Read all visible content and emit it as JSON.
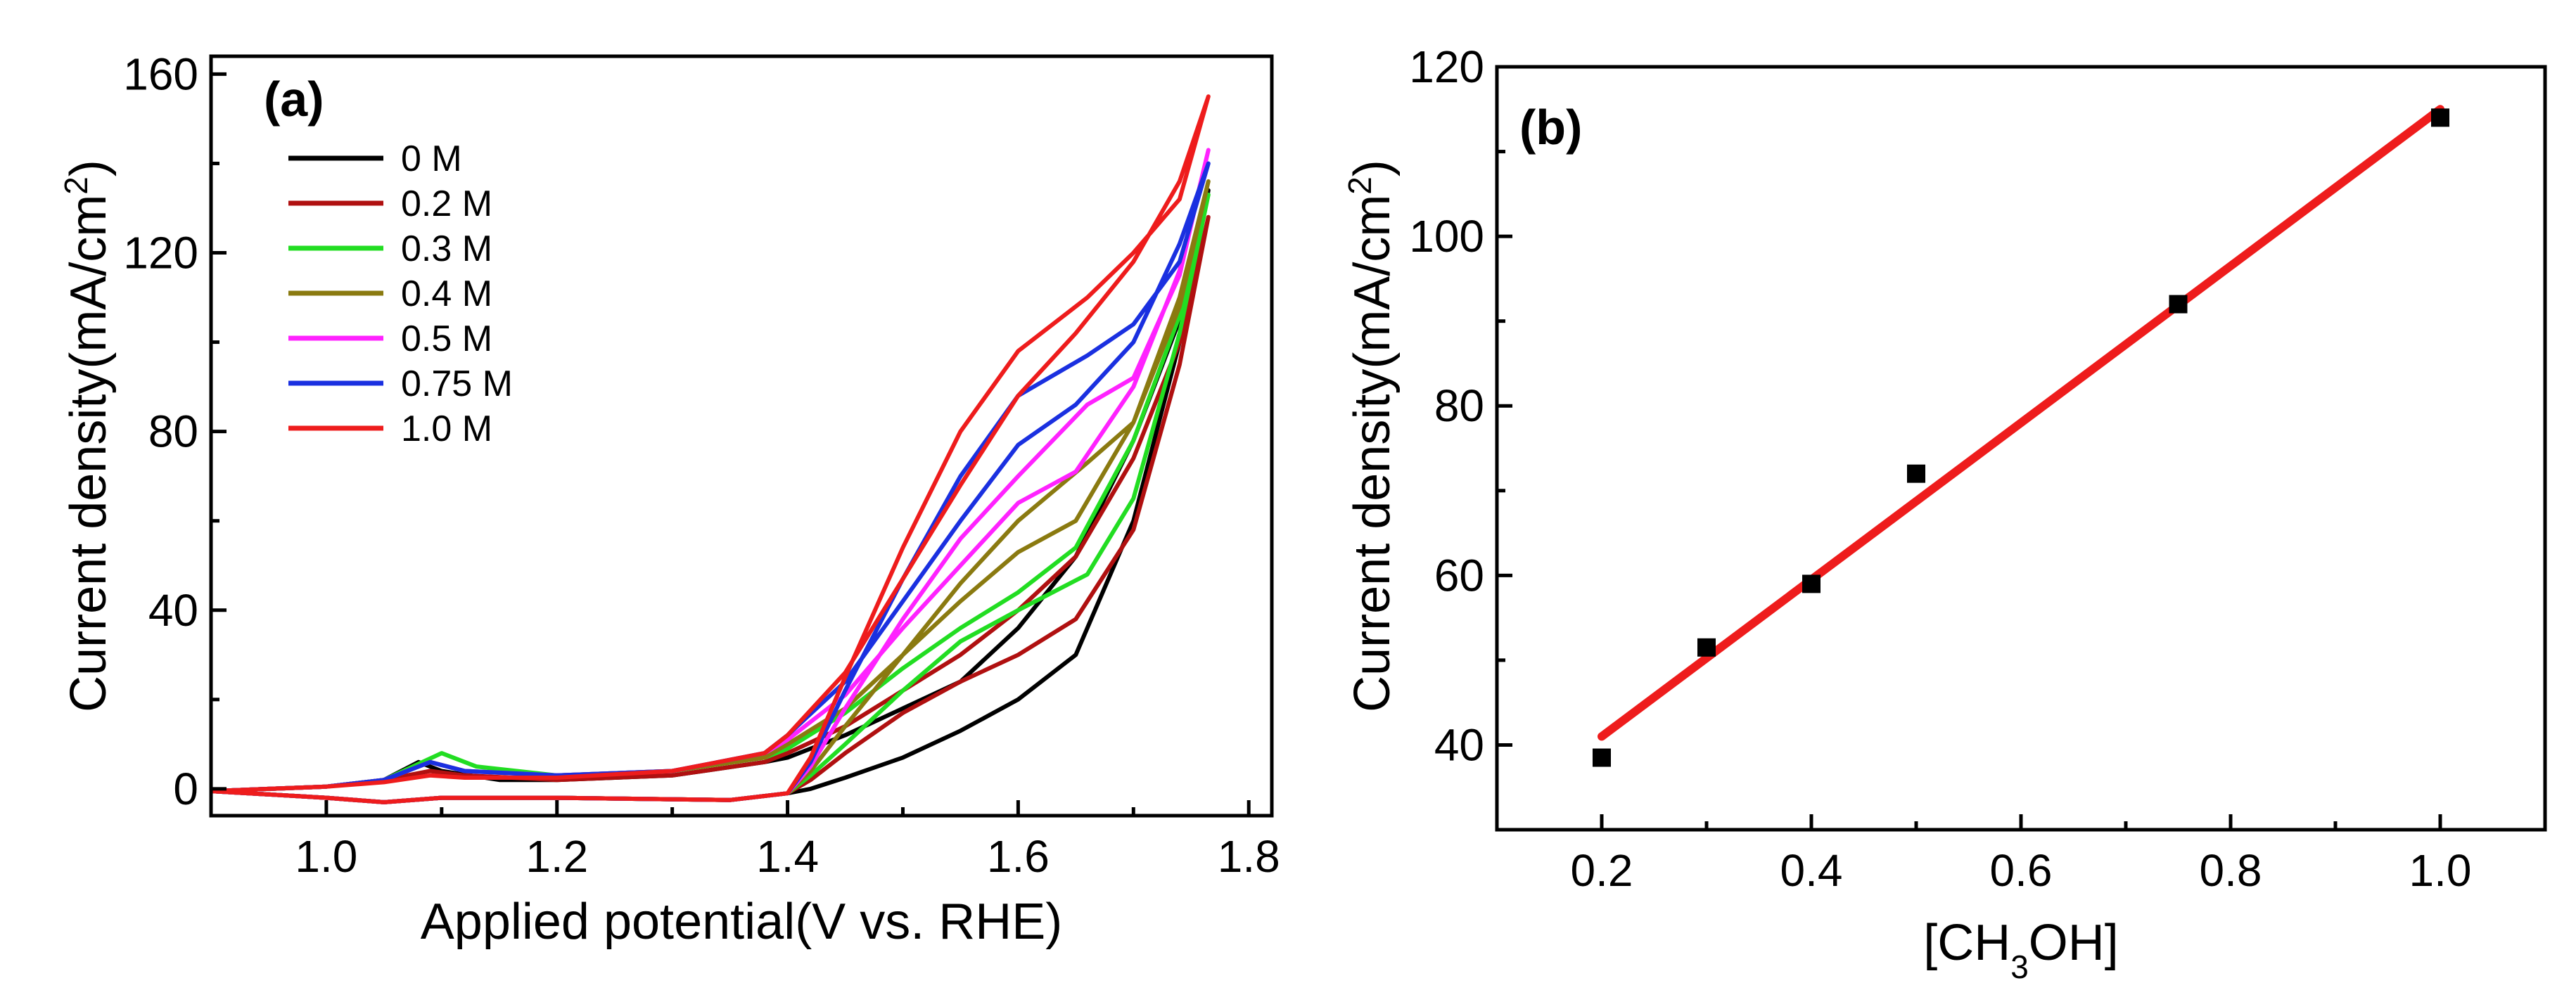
{
  "figure": {
    "panel_a_label": "(a)",
    "panel_b_label": "(b)"
  },
  "chart_data": [
    {
      "type": "line",
      "panel": "(a)",
      "title": "",
      "xlabel": "Applied potential(V vs. RHE)",
      "ylabel_main": "Current density(mA/cm",
      "ylabel_sup": "2",
      "ylabel_end": ")",
      "xlim": [
        0.9,
        1.82
      ],
      "ylim": [
        -6,
        164
      ],
      "xticks": [
        1.0,
        1.2,
        1.4,
        1.6,
        1.8
      ],
      "xtick_labels": [
        "1.0",
        "1.2",
        "1.4",
        "1.6",
        "1.8"
      ],
      "yticks": [
        0,
        40,
        80,
        120,
        160
      ],
      "ytick_labels": [
        "0",
        "40",
        "80",
        "120",
        "160"
      ],
      "legend_position": "top-left",
      "series": [
        {
          "name": "0 M",
          "color": "#000000",
          "forward": [
            [
              0.9,
              -0.5
            ],
            [
              1.0,
              0.5
            ],
            [
              1.05,
              2
            ],
            [
              1.08,
              6
            ],
            [
              1.1,
              4
            ],
            [
              1.15,
              2
            ],
            [
              1.2,
              2
            ],
            [
              1.3,
              3
            ],
            [
              1.38,
              6
            ],
            [
              1.4,
              7
            ],
            [
              1.45,
              12
            ],
            [
              1.5,
              18
            ],
            [
              1.55,
              24
            ],
            [
              1.6,
              36
            ],
            [
              1.65,
              52
            ],
            [
              1.7,
              78
            ],
            [
              1.74,
              105
            ],
            [
              1.765,
              134
            ]
          ],
          "backward": [
            [
              1.765,
              134
            ],
            [
              1.74,
              100
            ],
            [
              1.7,
              60
            ],
            [
              1.65,
              30
            ],
            [
              1.6,
              20
            ],
            [
              1.55,
              13
            ],
            [
              1.5,
              7
            ],
            [
              1.45,
              2.5
            ],
            [
              1.42,
              0
            ],
            [
              1.4,
              -1
            ],
            [
              1.35,
              -2.5
            ],
            [
              1.2,
              -2
            ],
            [
              1.1,
              -2
            ],
            [
              1.05,
              -3
            ],
            [
              1.0,
              -2
            ],
            [
              0.9,
              -0.5
            ]
          ]
        },
        {
          "name": "0.2 M",
          "color": "#b01010",
          "forward": [
            [
              0.9,
              -0.5
            ],
            [
              1.0,
              0.5
            ],
            [
              1.05,
              2
            ],
            [
              1.09,
              4
            ],
            [
              1.12,
              3
            ],
            [
              1.2,
              2
            ],
            [
              1.3,
              3
            ],
            [
              1.38,
              6
            ],
            [
              1.4,
              8
            ],
            [
              1.45,
              14
            ],
            [
              1.5,
              22
            ],
            [
              1.55,
              30
            ],
            [
              1.6,
              40
            ],
            [
              1.65,
              52
            ],
            [
              1.7,
              74
            ],
            [
              1.74,
              100
            ],
            [
              1.765,
              128
            ]
          ],
          "backward": [
            [
              1.765,
              128
            ],
            [
              1.74,
              95
            ],
            [
              1.7,
              58
            ],
            [
              1.65,
              38
            ],
            [
              1.6,
              30
            ],
            [
              1.55,
              24
            ],
            [
              1.5,
              17
            ],
            [
              1.45,
              8
            ],
            [
              1.42,
              2
            ],
            [
              1.4,
              -1
            ],
            [
              1.35,
              -2.5
            ],
            [
              1.2,
              -2
            ],
            [
              1.1,
              -2
            ],
            [
              1.05,
              -3
            ],
            [
              1.0,
              -2
            ],
            [
              0.9,
              -0.5
            ]
          ]
        },
        {
          "name": "0.3 M",
          "color": "#22dd22",
          "forward": [
            [
              0.9,
              -0.5
            ],
            [
              1.0,
              0.5
            ],
            [
              1.05,
              2
            ],
            [
              1.1,
              8
            ],
            [
              1.13,
              5
            ],
            [
              1.2,
              3
            ],
            [
              1.3,
              4
            ],
            [
              1.38,
              7
            ],
            [
              1.4,
              9
            ],
            [
              1.45,
              17
            ],
            [
              1.5,
              27
            ],
            [
              1.55,
              36
            ],
            [
              1.6,
              44
            ],
            [
              1.65,
              54
            ],
            [
              1.7,
              78
            ],
            [
              1.74,
              106
            ],
            [
              1.765,
              133
            ]
          ],
          "backward": [
            [
              1.765,
              133
            ],
            [
              1.74,
              102
            ],
            [
              1.7,
              65
            ],
            [
              1.66,
              48
            ],
            [
              1.6,
              40
            ],
            [
              1.55,
              33
            ],
            [
              1.5,
              22
            ],
            [
              1.45,
              10
            ],
            [
              1.42,
              3
            ],
            [
              1.4,
              -1
            ],
            [
              1.35,
              -2.5
            ],
            [
              1.2,
              -2
            ],
            [
              1.1,
              -2
            ],
            [
              1.05,
              -3
            ],
            [
              1.0,
              -2
            ],
            [
              0.9,
              -0.5
            ]
          ]
        },
        {
          "name": "0.4 M",
          "color": "#8a7a10",
          "forward": [
            [
              0.9,
              -0.5
            ],
            [
              1.0,
              0.5
            ],
            [
              1.05,
              2
            ],
            [
              1.09,
              6
            ],
            [
              1.12,
              4
            ],
            [
              1.2,
              3
            ],
            [
              1.3,
              4
            ],
            [
              1.38,
              7
            ],
            [
              1.4,
              10
            ],
            [
              1.45,
              18
            ],
            [
              1.5,
              30
            ],
            [
              1.55,
              42
            ],
            [
              1.6,
              53
            ],
            [
              1.65,
              60
            ],
            [
              1.7,
              82
            ],
            [
              1.74,
              110
            ],
            [
              1.765,
              136
            ]
          ],
          "backward": [
            [
              1.765,
              136
            ],
            [
              1.74,
              108
            ],
            [
              1.7,
              82
            ],
            [
              1.66,
              73
            ],
            [
              1.6,
              60
            ],
            [
              1.55,
              46
            ],
            [
              1.5,
              30
            ],
            [
              1.45,
              14
            ],
            [
              1.42,
              4
            ],
            [
              1.4,
              -1
            ],
            [
              1.35,
              -2.5
            ],
            [
              1.2,
              -2
            ],
            [
              1.1,
              -2
            ],
            [
              1.05,
              -3
            ],
            [
              1.0,
              -2
            ],
            [
              0.9,
              -0.5
            ]
          ]
        },
        {
          "name": "0.5 M",
          "color": "#ff22ff",
          "forward": [
            [
              0.9,
              -0.5
            ],
            [
              1.0,
              0.5
            ],
            [
              1.05,
              2
            ],
            [
              1.09,
              6
            ],
            [
              1.12,
              4
            ],
            [
              1.2,
              3
            ],
            [
              1.3,
              4
            ],
            [
              1.38,
              8
            ],
            [
              1.4,
              11
            ],
            [
              1.45,
              21
            ],
            [
              1.5,
              36
            ],
            [
              1.55,
              50
            ],
            [
              1.6,
              64
            ],
            [
              1.65,
              71
            ],
            [
              1.7,
              90
            ],
            [
              1.74,
              116
            ],
            [
              1.765,
              143
            ]
          ],
          "backward": [
            [
              1.765,
              143
            ],
            [
              1.74,
              115
            ],
            [
              1.7,
              92
            ],
            [
              1.66,
              86
            ],
            [
              1.6,
              70
            ],
            [
              1.55,
              56
            ],
            [
              1.5,
              38
            ],
            [
              1.45,
              18
            ],
            [
              1.42,
              5
            ],
            [
              1.4,
              -1
            ],
            [
              1.35,
              -2.5
            ],
            [
              1.2,
              -2
            ],
            [
              1.1,
              -2
            ],
            [
              1.05,
              -3
            ],
            [
              1.0,
              -2
            ],
            [
              0.9,
              -0.5
            ]
          ]
        },
        {
          "name": "0.75 M",
          "color": "#1a30e0",
          "forward": [
            [
              0.9,
              -0.5
            ],
            [
              1.0,
              0.5
            ],
            [
              1.05,
              2
            ],
            [
              1.09,
              6
            ],
            [
              1.12,
              4
            ],
            [
              1.2,
              3
            ],
            [
              1.3,
              4
            ],
            [
              1.38,
              8
            ],
            [
              1.4,
              12
            ],
            [
              1.45,
              24
            ],
            [
              1.5,
              42
            ],
            [
              1.55,
              60
            ],
            [
              1.6,
              77
            ],
            [
              1.65,
              86
            ],
            [
              1.7,
              100
            ],
            [
              1.74,
              122
            ],
            [
              1.765,
              140
            ]
          ],
          "backward": [
            [
              1.765,
              140
            ],
            [
              1.74,
              118
            ],
            [
              1.7,
              104
            ],
            [
              1.66,
              97
            ],
            [
              1.6,
              88
            ],
            [
              1.55,
              70
            ],
            [
              1.5,
              47
            ],
            [
              1.45,
              22
            ],
            [
              1.42,
              6
            ],
            [
              1.4,
              -1
            ],
            [
              1.35,
              -2.5
            ],
            [
              1.2,
              -2
            ],
            [
              1.1,
              -2
            ],
            [
              1.05,
              -3
            ],
            [
              1.0,
              -2
            ],
            [
              0.9,
              -0.5
            ]
          ]
        },
        {
          "name": "1.0 M",
          "color": "#ee1c1c",
          "forward": [
            [
              0.9,
              -0.5
            ],
            [
              1.0,
              0.5
            ],
            [
              1.05,
              1.5
            ],
            [
              1.09,
              3
            ],
            [
              1.12,
              2.5
            ],
            [
              1.2,
              2.5
            ],
            [
              1.3,
              4
            ],
            [
              1.38,
              8
            ],
            [
              1.4,
              12
            ],
            [
              1.45,
              26
            ],
            [
              1.5,
              47
            ],
            [
              1.55,
              68
            ],
            [
              1.6,
              88
            ],
            [
              1.65,
              102
            ],
            [
              1.7,
              118
            ],
            [
              1.74,
              136
            ],
            [
              1.765,
              155
            ]
          ],
          "backward": [
            [
              1.765,
              155
            ],
            [
              1.74,
              132
            ],
            [
              1.7,
              120
            ],
            [
              1.66,
              110
            ],
            [
              1.6,
              98
            ],
            [
              1.55,
              80
            ],
            [
              1.5,
              54
            ],
            [
              1.45,
              25
            ],
            [
              1.42,
              7
            ],
            [
              1.4,
              -1
            ],
            [
              1.35,
              -2.5
            ],
            [
              1.2,
              -2
            ],
            [
              1.1,
              -2
            ],
            [
              1.05,
              -3
            ],
            [
              1.0,
              -2
            ],
            [
              0.9,
              -0.5
            ]
          ]
        }
      ]
    },
    {
      "type": "scatter",
      "panel": "(b)",
      "title": "",
      "xlabel_pre": "[CH",
      "xlabel_sub": "3",
      "xlabel_post": "OH]",
      "ylabel_main": "Current density(mA/cm",
      "ylabel_sup": "2",
      "ylabel_end": ")",
      "xlim": [
        0.1,
        1.1
      ],
      "ylim": [
        30,
        120
      ],
      "xticks": [
        0.2,
        0.4,
        0.6,
        0.8,
        1.0
      ],
      "xtick_labels": [
        "0.2",
        "0.4",
        "0.6",
        "0.8",
        "1.0"
      ],
      "yticks": [
        40,
        60,
        80,
        100,
        120
      ],
      "ytick_labels": [
        "40",
        "60",
        "80",
        "100",
        "120"
      ],
      "x": [
        0.2,
        0.3,
        0.4,
        0.5,
        0.75,
        1.0
      ],
      "y": [
        38.5,
        51.5,
        59,
        72,
        92,
        114
      ],
      "marker_color": "#000000",
      "fit": {
        "color": "#ee1c1c",
        "x": [
          0.2,
          1.0
        ],
        "y": [
          41,
          115
        ]
      }
    }
  ]
}
